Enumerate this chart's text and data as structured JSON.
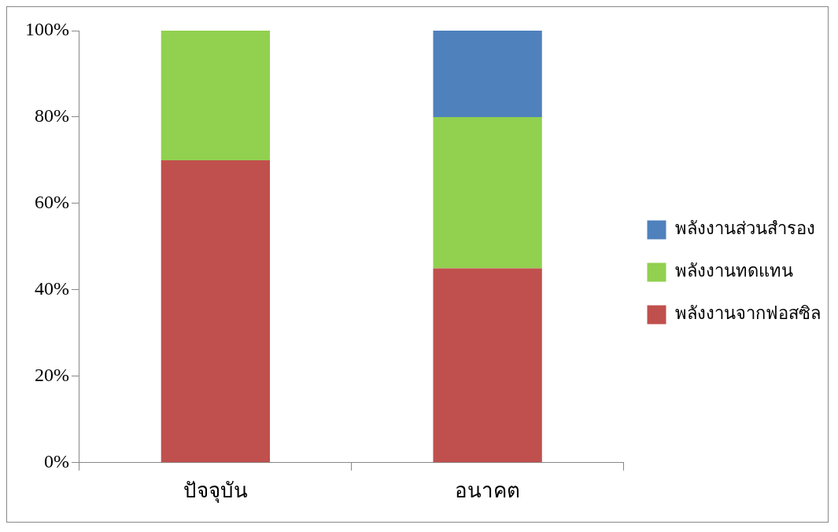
{
  "chart_data": {
    "type": "bar",
    "stacked": true,
    "categories": [
      "ปัจจุบัน",
      "อนาคต"
    ],
    "series": [
      {
        "name": "พลังงานจากฟอสซิล",
        "color": "#c0504d",
        "values": [
          70,
          45
        ]
      },
      {
        "name": "พลังงานทดแทน",
        "color": "#92d050",
        "values": [
          30,
          35
        ]
      },
      {
        "name": "พลังงานส่วนสำรอง",
        "color": "#4f81bd",
        "values": [
          0,
          20
        ]
      }
    ],
    "ylim": [
      0,
      100
    ],
    "yticks": [
      {
        "value": 0,
        "label": "0%"
      },
      {
        "value": 20,
        "label": "20%"
      },
      {
        "value": 40,
        "label": "40%"
      },
      {
        "value": 60,
        "label": "60%"
      },
      {
        "value": 80,
        "label": "80%"
      },
      {
        "value": 100,
        "label": "100%"
      }
    ],
    "grid": false,
    "legend": "right"
  }
}
